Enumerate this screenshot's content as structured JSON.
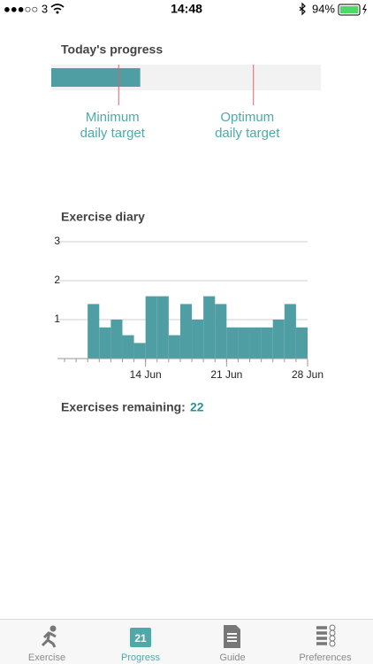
{
  "status_bar": {
    "carrier": "●●●○○ 3",
    "time": "14:48",
    "battery": "94%"
  },
  "progress": {
    "title": "Today's progress",
    "value": 0.33,
    "minimum": 0.25,
    "optimum": 0.75,
    "minimum_label": [
      "Minimum",
      "daily target"
    ],
    "optimum_label": [
      "Optimum",
      "daily target"
    ],
    "color": "#4f9ea4",
    "target_color": "#e0606a"
  },
  "chart_data": {
    "type": "histogram",
    "title": "Exercise diary",
    "bins": [
      9,
      10,
      11,
      12,
      13,
      14,
      15,
      16,
      17,
      18,
      19,
      20,
      21,
      22,
      23,
      24,
      25,
      26,
      27,
      28
    ],
    "values": [
      1.4,
      0.8,
      1.0,
      0.6,
      0.4,
      1.6,
      1.6,
      0.6,
      1.4,
      1.0,
      1.6,
      1.4,
      0.8,
      0.8,
      0.8,
      0.8,
      1.0,
      1.4,
      0.8
    ],
    "color": "#4f9ea4",
    "xlim": [
      7,
      28
    ],
    "xticks": [
      {
        "value": 14,
        "label": "14 Jun"
      },
      {
        "value": 21,
        "label": "21 Jun"
      },
      {
        "value": 28,
        "label": "28 Jun"
      }
    ],
    "ylim": [
      0,
      3
    ],
    "yticks": [
      1,
      2,
      3
    ],
    "grid": true
  },
  "remaining": {
    "label": "Exercises remaining:",
    "value": 22
  },
  "tab_bar": {
    "tabs": [
      "Exercise",
      "Progress",
      "Guide",
      "Preferences"
    ],
    "active": 1,
    "calendar_day": "21"
  }
}
